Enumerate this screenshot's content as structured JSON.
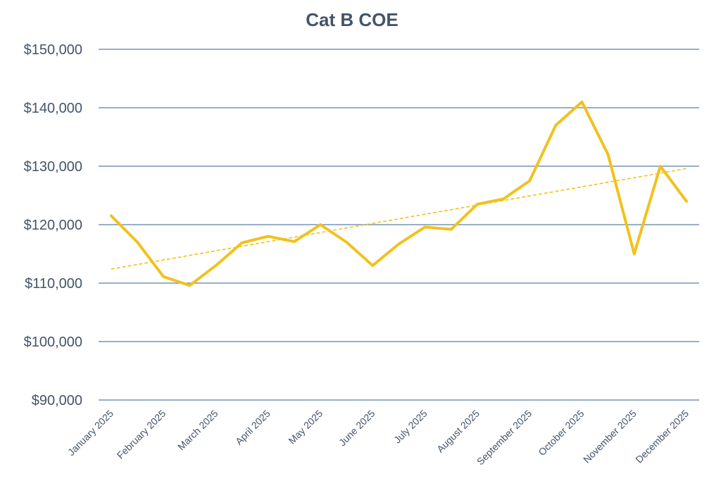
{
  "chart_data": {
    "type": "line",
    "title": "Cat B COE",
    "xlabel": "",
    "ylabel": "",
    "ylim": [
      90000,
      150000
    ],
    "yticks": [
      90000,
      100000,
      110000,
      120000,
      130000,
      140000,
      150000
    ],
    "ytick_labels": [
      "$90,000",
      "$100,000",
      "$110,000",
      "$120,000",
      "$130,000",
      "$140,000",
      "$150,000"
    ],
    "categories": [
      "January 2025",
      "February 2025",
      "March 2025",
      "April 2025",
      "May 2025",
      "June 2025",
      "July 2025",
      "August 2025",
      "September 2025",
      "October 2025",
      "November 2025",
      "December 2025"
    ],
    "grid": true,
    "legend": "none",
    "colors": {
      "series": "#f2c11e",
      "trend": "#f2c11e",
      "grid": "#5b7fa6",
      "text": "#44546a"
    },
    "series": [
      {
        "name": "Cat B COE",
        "x": [
          0,
          0.5,
          1,
          1.5,
          2,
          2.5,
          3,
          3.5,
          4,
          4.5,
          5,
          5.5,
          6,
          6.5,
          7,
          7.5,
          8,
          8.5,
          9,
          9.5,
          10,
          10.5,
          11
        ],
        "values": [
          121500,
          117000,
          111100,
          109600,
          113000,
          116900,
          118000,
          117100,
          120000,
          117000,
          113000,
          116700,
          119600,
          119200,
          123500,
          124400,
          127500,
          137000,
          141000,
          132000,
          115000,
          130000,
          124000
        ]
      }
    ],
    "trendline": {
      "name": "Linear trend",
      "start": 112400,
      "end": 129600
    }
  }
}
